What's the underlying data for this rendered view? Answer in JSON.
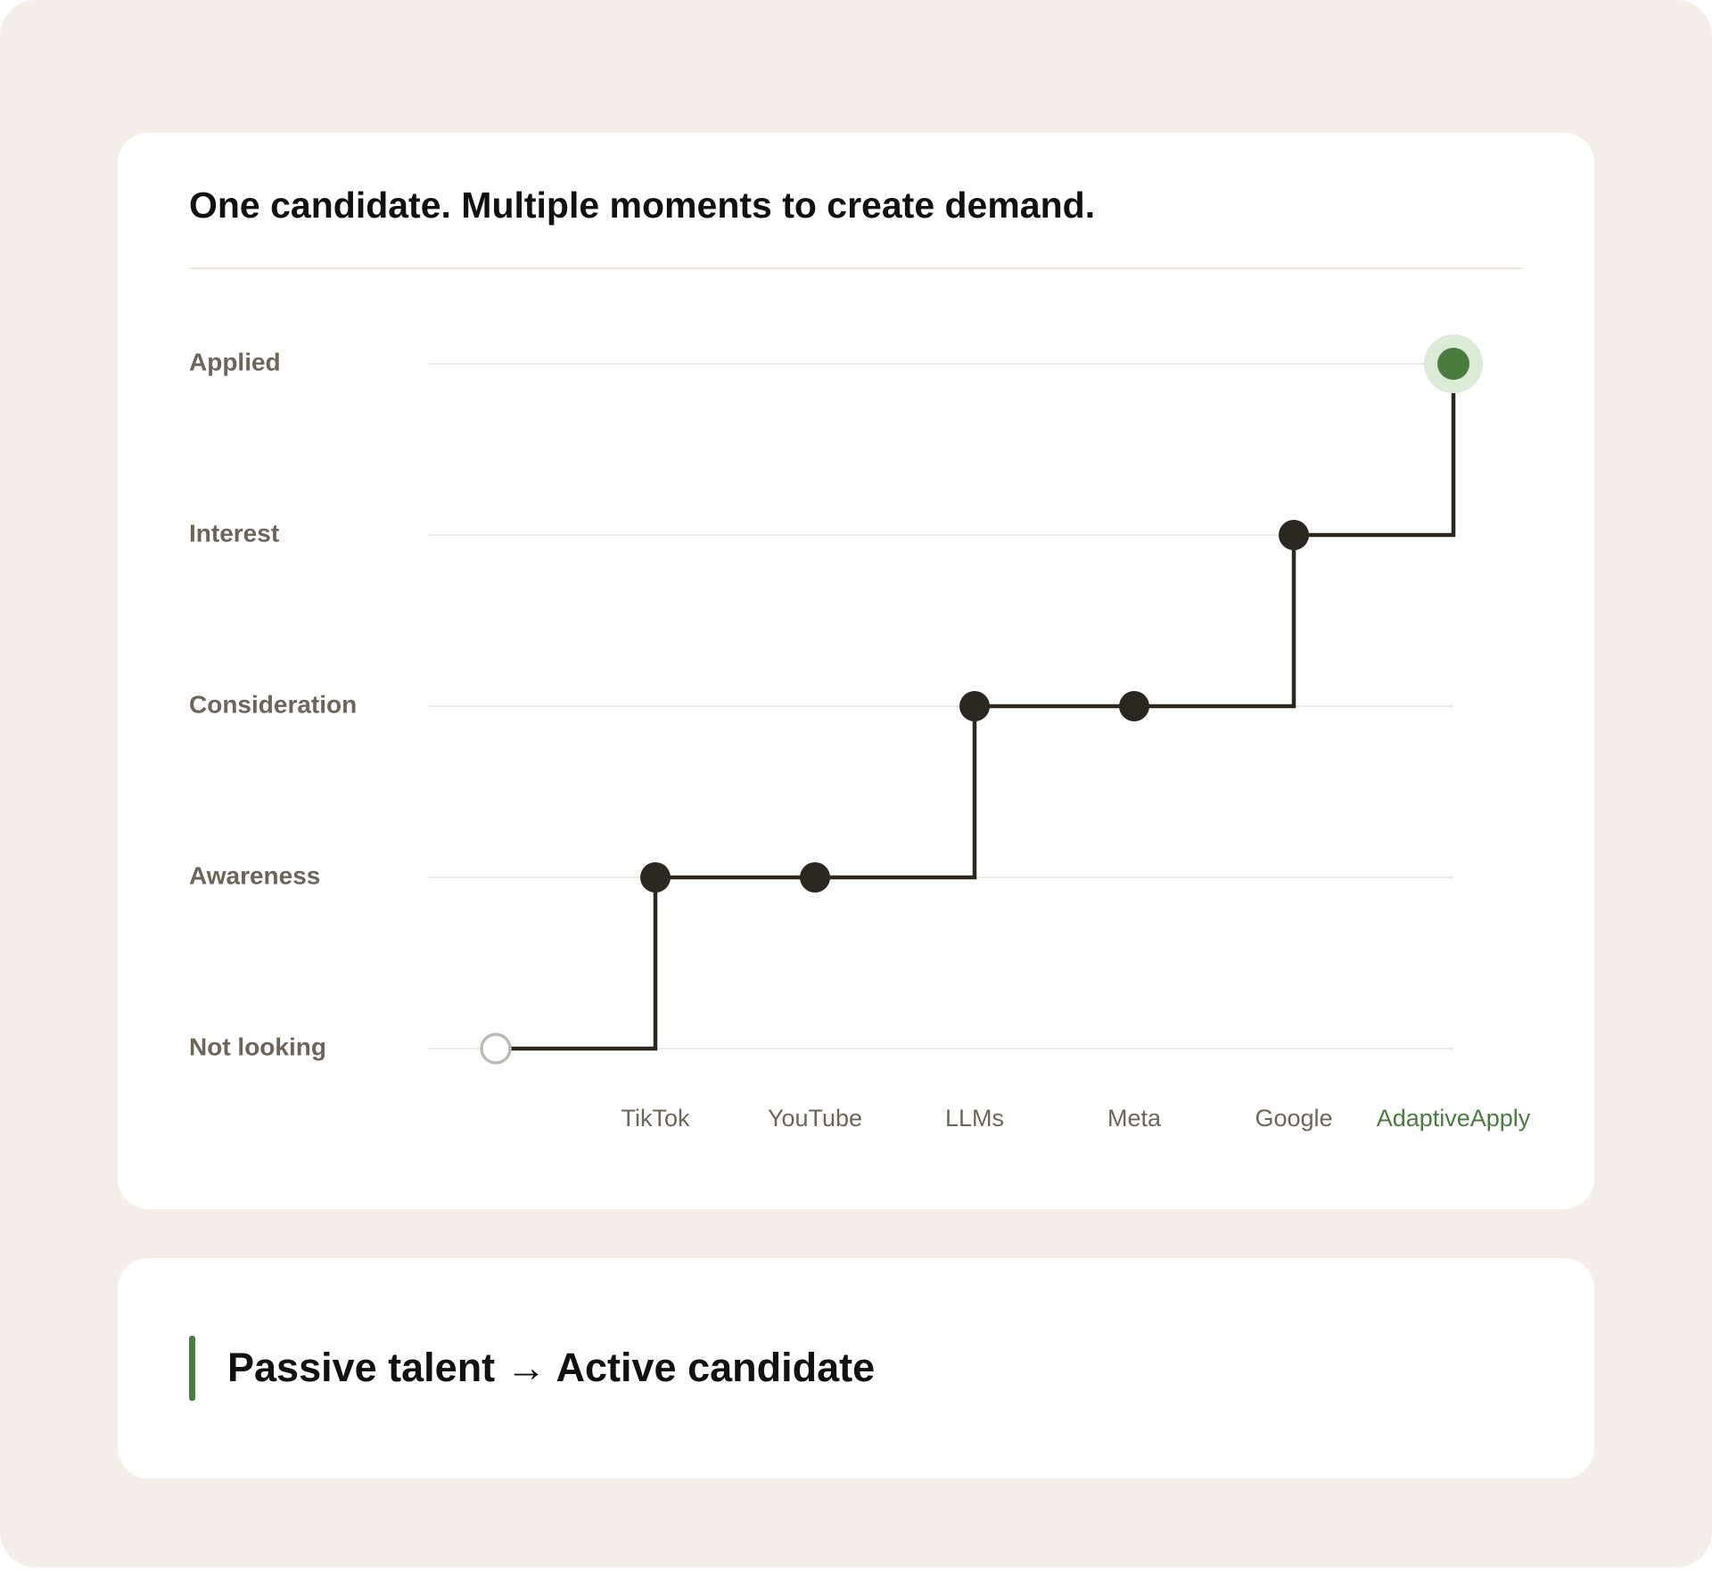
{
  "chart_data": {
    "type": "step",
    "title": "One candidate. Multiple moments to create demand.",
    "categories": [
      null,
      "TikTok",
      "YouTube",
      "LLMs",
      "Meta",
      "Google",
      "AdaptiveApply"
    ],
    "y_categories": [
      "Not looking",
      "Awareness",
      "Consideration",
      "Interest",
      "Applied"
    ],
    "values": [
      0,
      1,
      1,
      2,
      2,
      3,
      4
    ],
    "color": "#2b2820",
    "highlight_color": "#4a7c3f",
    "grid": true
  },
  "callout": {
    "text": "Passive talent → Active candidate"
  }
}
